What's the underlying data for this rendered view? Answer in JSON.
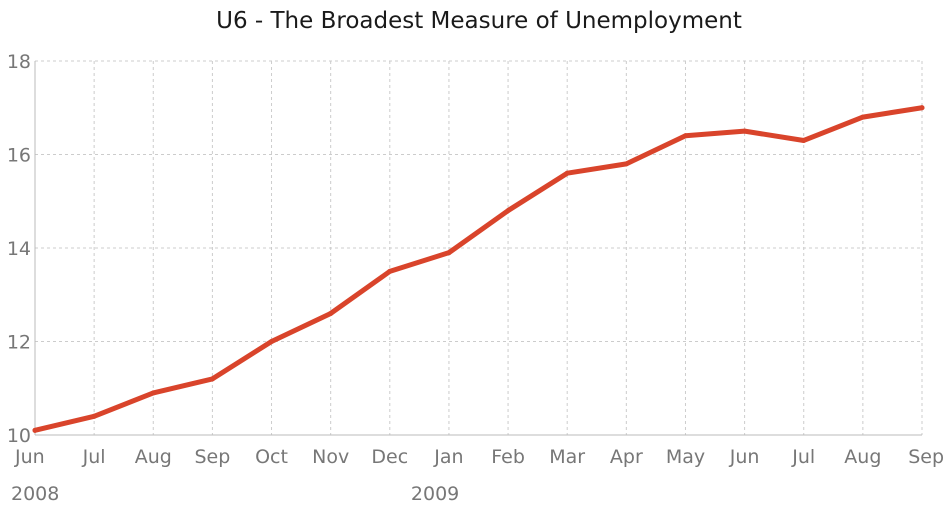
{
  "chart_data": {
    "type": "line",
    "title": "U6 - The Broadest Measure of Unemployment",
    "xlabel": "",
    "ylabel": "",
    "categories": [
      "Jun",
      "Jul",
      "Aug",
      "Sep",
      "Oct",
      "Nov",
      "Dec",
      "Jan",
      "Feb",
      "Mar",
      "Apr",
      "May",
      "Jun",
      "Jul",
      "Aug",
      "Sep"
    ],
    "year_labels": [
      {
        "label": "2008",
        "category_index": 0
      },
      {
        "label": "2009",
        "category_index": 7
      }
    ],
    "series": [
      {
        "values": [
          10.1,
          10.4,
          10.9,
          11.2,
          12.0,
          12.6,
          13.5,
          13.9,
          14.8,
          15.6,
          15.8,
          16.4,
          16.5,
          16.3,
          16.8,
          17.0
        ],
        "color": "#d9442b"
      }
    ],
    "ylim": [
      10,
      18
    ],
    "yticks": [
      "10",
      "12",
      "14",
      "16",
      "18"
    ],
    "grid": true,
    "legend": "none"
  }
}
